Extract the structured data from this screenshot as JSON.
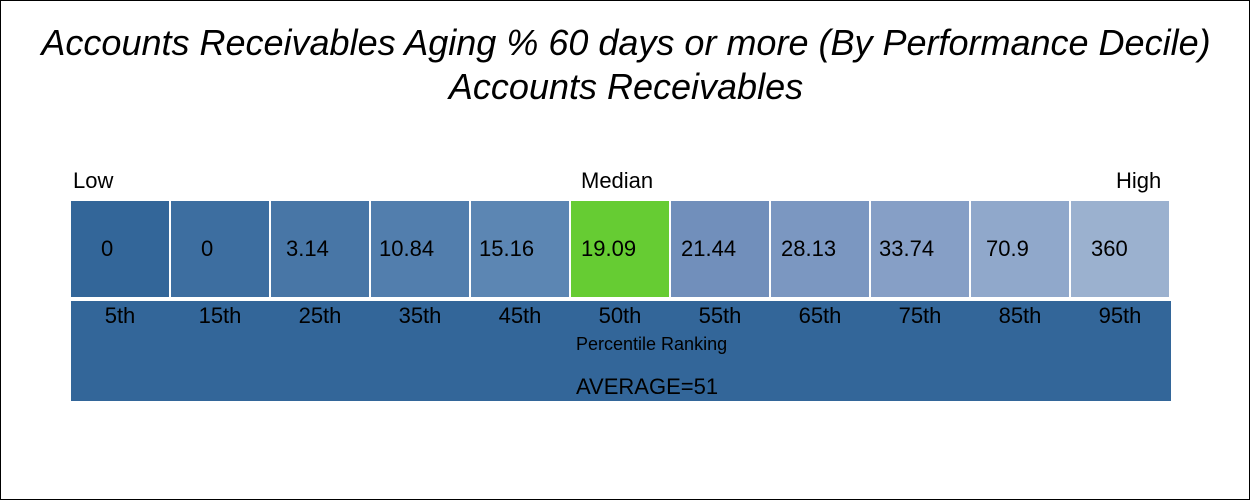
{
  "title": "Accounts Receivables Aging % 60 days or more (By Performance Decile) Accounts Receivables",
  "scale": {
    "low": "Low",
    "median": "Median",
    "high": "High"
  },
  "colors": {
    "band": "#336699",
    "highlight": "#66cc33",
    "cells": [
      "#336699",
      "#3d6ea0",
      "#4876a6",
      "#527ead",
      "#5c86b3",
      "#66cc33",
      "#718fbb",
      "#7b97c1",
      "#869fc6",
      "#90a8cb",
      "#9bb1cf"
    ]
  },
  "chart_data": {
    "type": "table",
    "categories": [
      "5th",
      "15th",
      "25th",
      "35th",
      "45th",
      "50th",
      "55th",
      "65th",
      "75th",
      "85th",
      "95th"
    ],
    "values": [
      "0",
      "0",
      "3.14",
      "10.84",
      "15.16",
      "19.09",
      "21.44",
      "28.13",
      "33.74",
      "70.9",
      "360"
    ],
    "highlight_category": "50th",
    "xlabel": "Percentile Ranking",
    "average_label": "AVERAGE=51"
  }
}
